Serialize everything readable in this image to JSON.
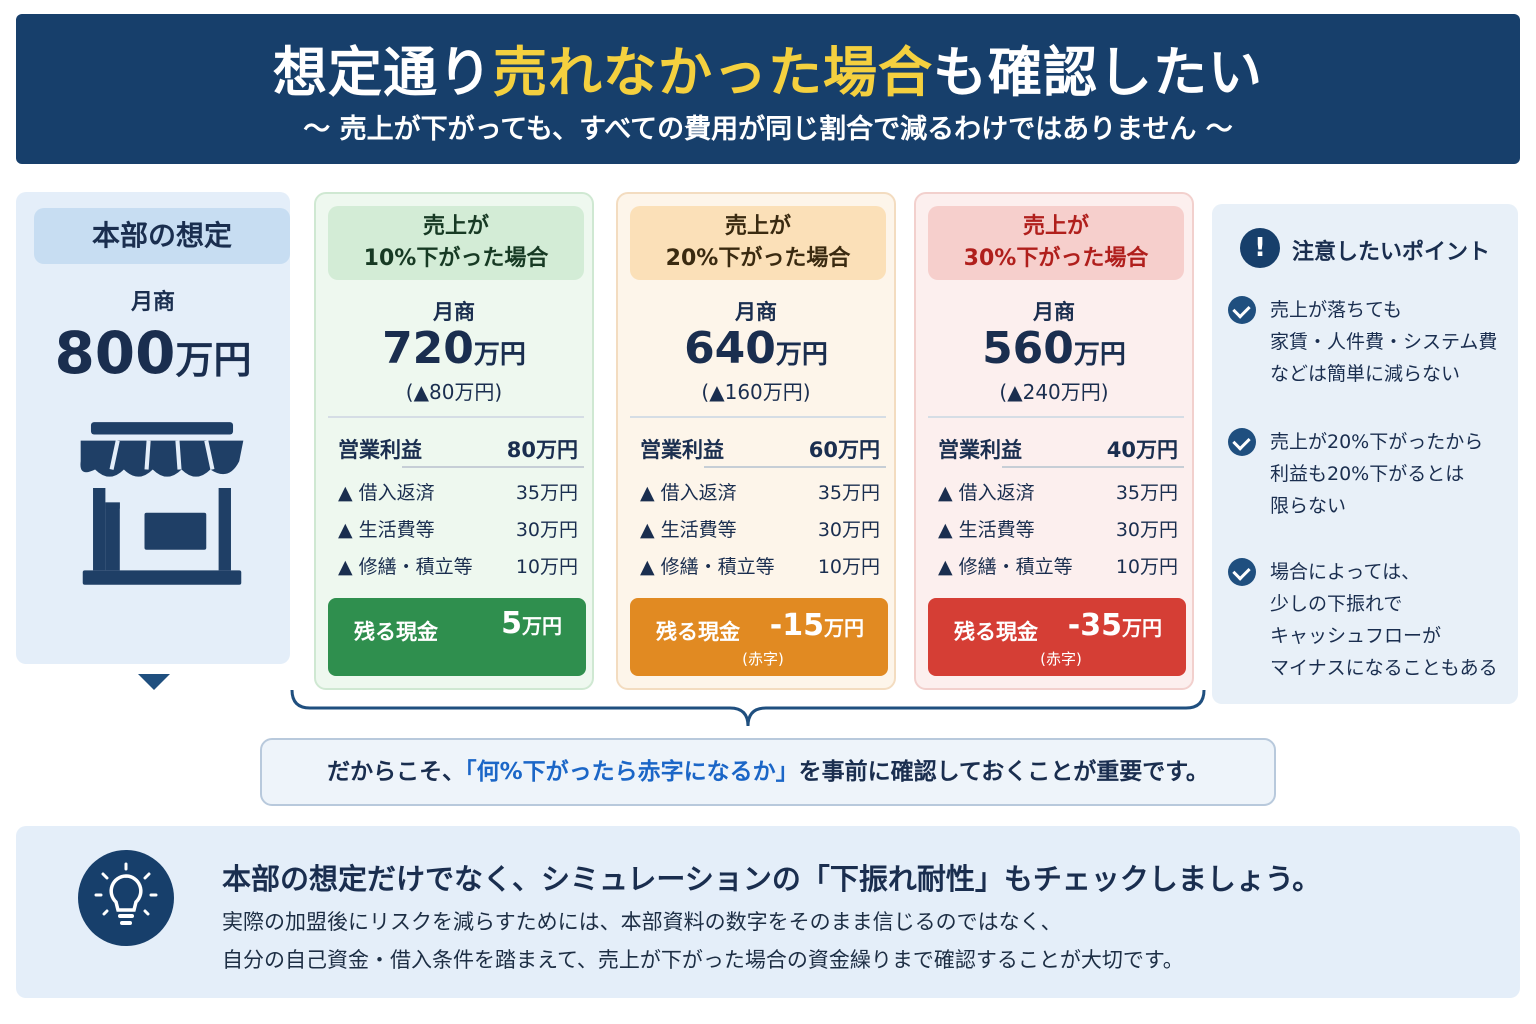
{
  "header": {
    "title_pre": "想定通り",
    "title_highlight": "売れなかった場合",
    "title_post": "も確認したい",
    "subtitle": "〜 売上が下がっても、すべての費用が同じ割合で減るわけではありません 〜"
  },
  "assumption": {
    "title": "本部の想定",
    "label": "月商",
    "value": "800",
    "unit": "万円",
    "icon": "store-icon"
  },
  "scenarios": [
    {
      "head_line1": "売上が",
      "head_line2": "10%下がった場合",
      "label": "月商",
      "value": "720",
      "unit": "万円",
      "diff": "(▲80万円)",
      "profit_label": "営業利益",
      "profit_value": "80万円",
      "items": [
        {
          "label": "▲ 借入返済",
          "value": "35万円"
        },
        {
          "label": "▲ 生活費等",
          "value": "30万円"
        },
        {
          "label": "▲ 修繕・積立等",
          "value": "10万円"
        }
      ],
      "cash_label": "残る現金",
      "cash_value": "5",
      "cash_unit": "万円",
      "cash_note": "",
      "color": "#2f8f4e"
    },
    {
      "head_line1": "売上が",
      "head_line2": "20%下がった場合",
      "label": "月商",
      "value": "640",
      "unit": "万円",
      "diff": "(▲160万円)",
      "profit_label": "営業利益",
      "profit_value": "60万円",
      "items": [
        {
          "label": "▲ 借入返済",
          "value": "35万円"
        },
        {
          "label": "▲ 生活費等",
          "value": "30万円"
        },
        {
          "label": "▲ 修繕・積立等",
          "value": "10万円"
        }
      ],
      "cash_label": "残る現金",
      "cash_value": "-15",
      "cash_unit": "万円",
      "cash_note": "(赤字)",
      "color": "#e18a22"
    },
    {
      "head_line1": "売上が",
      "head_line2": "30%下がった場合",
      "label": "月商",
      "value": "560",
      "unit": "万円",
      "diff": "(▲240万円)",
      "profit_label": "営業利益",
      "profit_value": "40万円",
      "items": [
        {
          "label": "▲ 借入返済",
          "value": "35万円"
        },
        {
          "label": "▲ 生活費等",
          "value": "30万円"
        },
        {
          "label": "▲ 修繕・積立等",
          "value": "10万円"
        }
      ],
      "cash_label": "残る現金",
      "cash_value": "-35",
      "cash_unit": "万円",
      "cash_note": "(赤字)",
      "color": "#d53e35"
    }
  ],
  "caution": {
    "icon": "exclamation-icon",
    "title": "注意したいポイント",
    "points": [
      {
        "lines": [
          "売上が落ちても",
          "家賃・人件費・システム費",
          "などは簡単に減らない"
        ]
      },
      {
        "lines": [
          "売上が20%下がったから",
          "利益も20%下がるとは",
          "限らない"
        ]
      },
      {
        "lines": [
          "場合によっては、",
          "少しの下振れで",
          "キャッシュフローが",
          "マイナスになることもある"
        ]
      }
    ]
  },
  "callout": {
    "pre": "だからこそ、",
    "highlight": "「何%下がったら赤字になるか」",
    "post": "を事前に確認しておくことが重要です。"
  },
  "bottom": {
    "icon": "lightbulb-icon",
    "title": "本部の想定だけでなく、シミュレーションの「下振れ耐性」もチェックしましょう。",
    "line1": "実際の加盟後にリスクを減らすためには、本部資料の数字をそのまま信じるのではなく、",
    "line2": "自分の自己資金・借入条件を踏まえて、売上が下がった場合の資金繰りまで確認することが大切です。"
  },
  "colors": {
    "navy": "#173f6b",
    "highlight_yellow": "#f4d03f",
    "highlight_blue": "#1b66c7"
  }
}
